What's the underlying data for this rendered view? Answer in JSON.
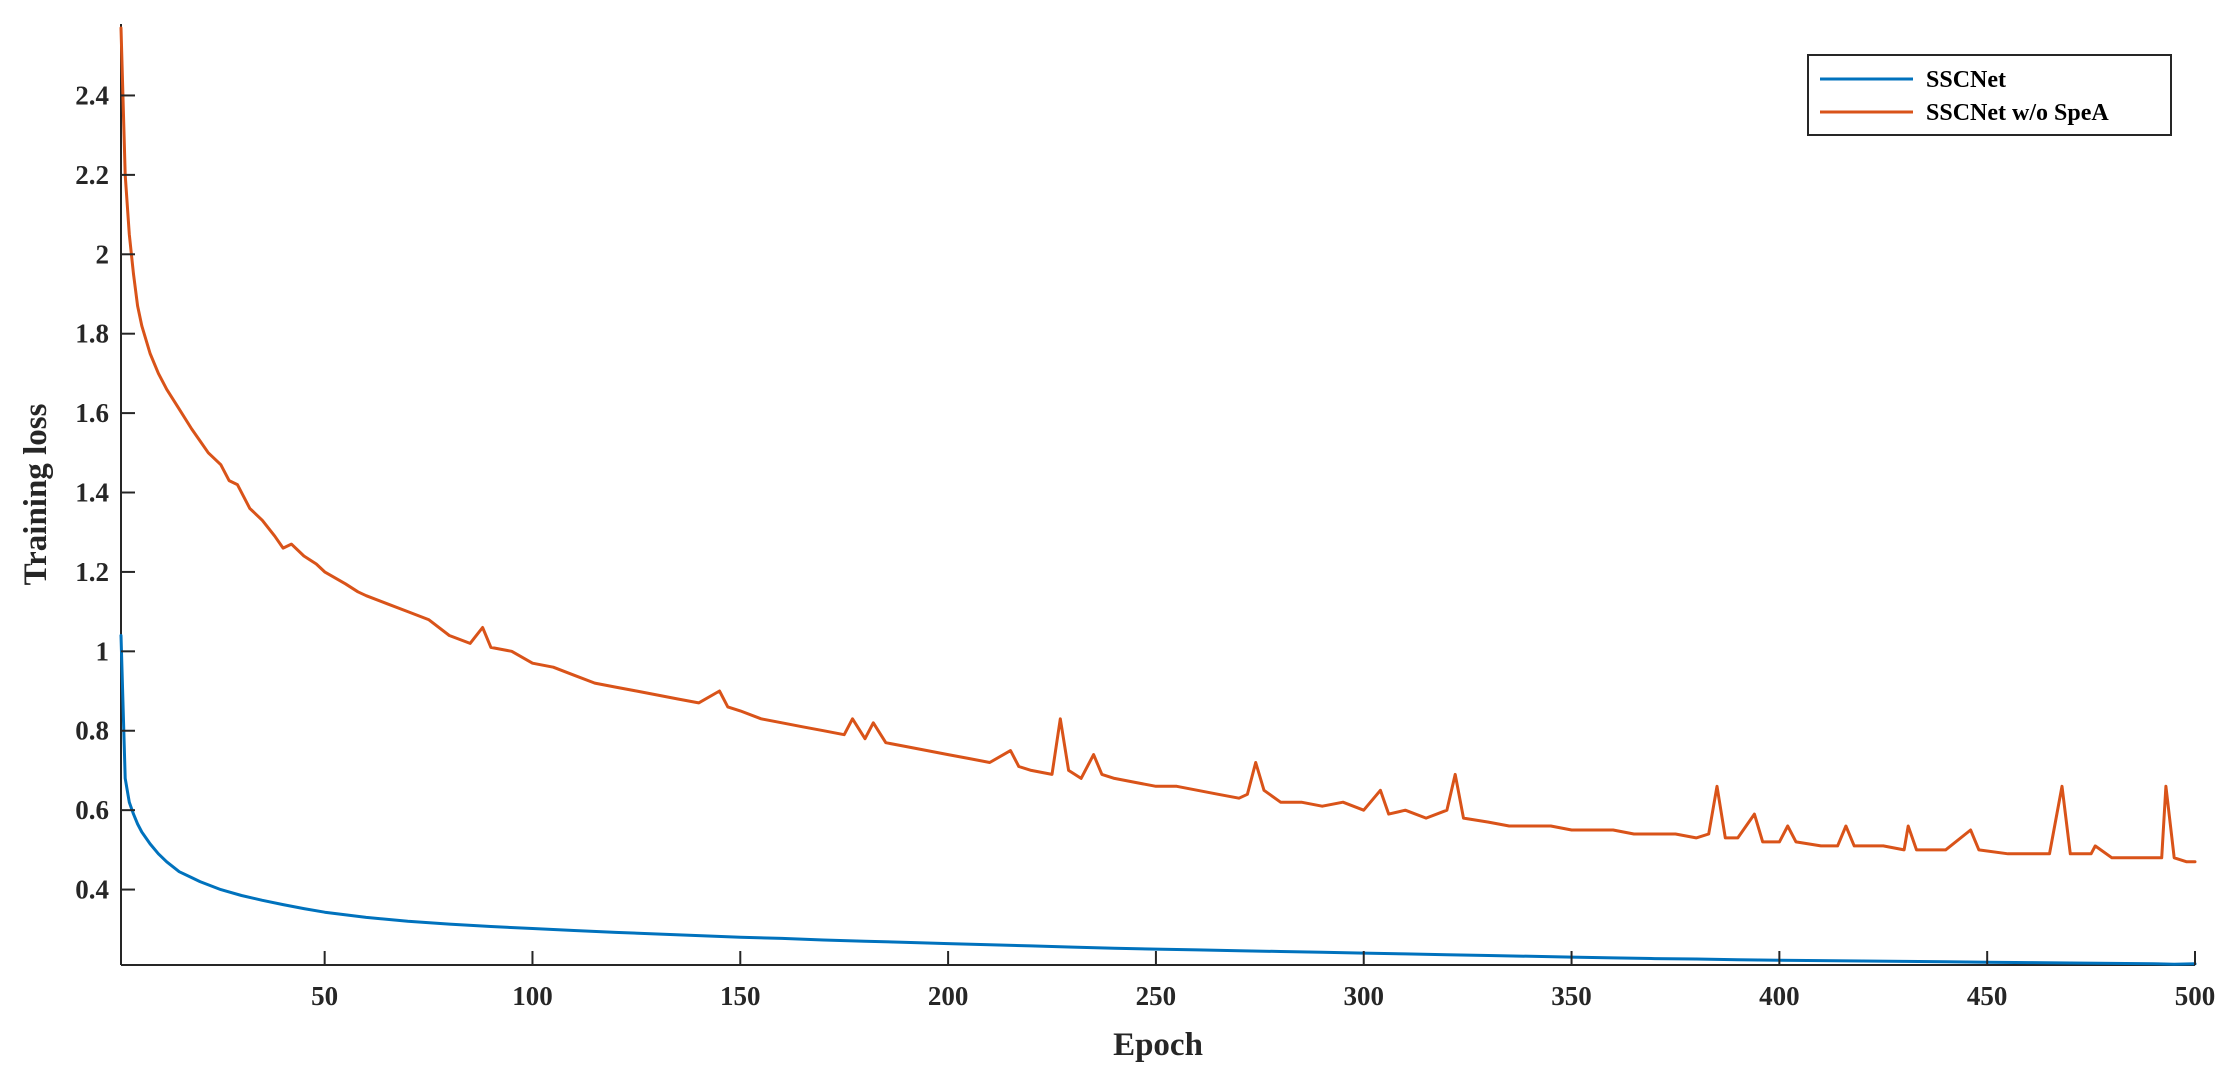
{
  "chart_data": {
    "type": "line",
    "title": "",
    "xlabel": "Epoch",
    "ylabel": "Training loss",
    "xlim": [
      1,
      500
    ],
    "ylim": [
      0.21,
      2.58
    ],
    "x_ticks": [
      50,
      100,
      150,
      200,
      250,
      300,
      350,
      400,
      450,
      500
    ],
    "y_ticks": [
      0.4,
      0.6,
      0.8,
      1,
      1.2,
      1.4,
      1.6,
      1.8,
      2,
      2.2,
      2.4
    ],
    "x_tick_labels": [
      "50",
      "100",
      "150",
      "200",
      "250",
      "300",
      "350",
      "400",
      "450",
      "500"
    ],
    "y_tick_labels": [
      "0.4",
      "0.6",
      "0.8",
      "1",
      "1.2",
      "1.4",
      "1.6",
      "1.8",
      "2",
      "2.2",
      "2.4"
    ],
    "grid": false,
    "legend_position": "top-right",
    "series": [
      {
        "name": "SSCNet",
        "color": "#0072BD",
        "points": [
          [
            1,
            1.04
          ],
          [
            2,
            0.68
          ],
          [
            3,
            0.62
          ],
          [
            4,
            0.59
          ],
          [
            5,
            0.565
          ],
          [
            6,
            0.545
          ],
          [
            8,
            0.515
          ],
          [
            10,
            0.49
          ],
          [
            12,
            0.47
          ],
          [
            15,
            0.445
          ],
          [
            18,
            0.43
          ],
          [
            20,
            0.42
          ],
          [
            25,
            0.4
          ],
          [
            30,
            0.385
          ],
          [
            35,
            0.373
          ],
          [
            40,
            0.362
          ],
          [
            45,
            0.352
          ],
          [
            50,
            0.343
          ],
          [
            60,
            0.33
          ],
          [
            70,
            0.32
          ],
          [
            80,
            0.313
          ],
          [
            90,
            0.307
          ],
          [
            100,
            0.302
          ],
          [
            110,
            0.297
          ],
          [
            120,
            0.292
          ],
          [
            130,
            0.288
          ],
          [
            140,
            0.284
          ],
          [
            150,
            0.28
          ],
          [
            160,
            0.277
          ],
          [
            170,
            0.273
          ],
          [
            180,
            0.27
          ],
          [
            190,
            0.267
          ],
          [
            200,
            0.264
          ],
          [
            210,
            0.261
          ],
          [
            220,
            0.258
          ],
          [
            230,
            0.255
          ],
          [
            240,
            0.252
          ],
          [
            250,
            0.25
          ],
          [
            260,
            0.248
          ],
          [
            270,
            0.246
          ],
          [
            280,
            0.244
          ],
          [
            290,
            0.242
          ],
          [
            300,
            0.24
          ],
          [
            310,
            0.238
          ],
          [
            320,
            0.236
          ],
          [
            330,
            0.234
          ],
          [
            340,
            0.232
          ],
          [
            350,
            0.23
          ],
          [
            360,
            0.228
          ],
          [
            370,
            0.226
          ],
          [
            380,
            0.225
          ],
          [
            390,
            0.223
          ],
          [
            400,
            0.222
          ],
          [
            410,
            0.221
          ],
          [
            420,
            0.22
          ],
          [
            430,
            0.219
          ],
          [
            440,
            0.218
          ],
          [
            450,
            0.217
          ],
          [
            460,
            0.216
          ],
          [
            470,
            0.215
          ],
          [
            480,
            0.214
          ],
          [
            490,
            0.213
          ],
          [
            495,
            0.212
          ],
          [
            500,
            0.213
          ]
        ]
      },
      {
        "name": "SSCNet w/o SpeA",
        "color": "#D95319",
        "points": [
          [
            1,
            2.57
          ],
          [
            2,
            2.2
          ],
          [
            3,
            2.05
          ],
          [
            4,
            1.95
          ],
          [
            5,
            1.87
          ],
          [
            6,
            1.82
          ],
          [
            8,
            1.75
          ],
          [
            10,
            1.7
          ],
          [
            12,
            1.66
          ],
          [
            15,
            1.61
          ],
          [
            18,
            1.56
          ],
          [
            20,
            1.53
          ],
          [
            22,
            1.5
          ],
          [
            25,
            1.47
          ],
          [
            27,
            1.43
          ],
          [
            29,
            1.42
          ],
          [
            32,
            1.36
          ],
          [
            35,
            1.33
          ],
          [
            38,
            1.29
          ],
          [
            40,
            1.26
          ],
          [
            42,
            1.27
          ],
          [
            45,
            1.24
          ],
          [
            48,
            1.22
          ],
          [
            50,
            1.2
          ],
          [
            55,
            1.17
          ],
          [
            58,
            1.15
          ],
          [
            60,
            1.14
          ],
          [
            65,
            1.12
          ],
          [
            70,
            1.1
          ],
          [
            75,
            1.08
          ],
          [
            80,
            1.04
          ],
          [
            85,
            1.02
          ],
          [
            88,
            1.06
          ],
          [
            90,
            1.01
          ],
          [
            95,
            1.0
          ],
          [
            100,
            0.97
          ],
          [
            105,
            0.96
          ],
          [
            110,
            0.94
          ],
          [
            115,
            0.92
          ],
          [
            120,
            0.91
          ],
          [
            125,
            0.9
          ],
          [
            130,
            0.89
          ],
          [
            135,
            0.88
          ],
          [
            140,
            0.87
          ],
          [
            145,
            0.9
          ],
          [
            147,
            0.86
          ],
          [
            150,
            0.85
          ],
          [
            155,
            0.83
          ],
          [
            160,
            0.82
          ],
          [
            165,
            0.81
          ],
          [
            170,
            0.8
          ],
          [
            175,
            0.79
          ],
          [
            177,
            0.83
          ],
          [
            180,
            0.78
          ],
          [
            182,
            0.82
          ],
          [
            185,
            0.77
          ],
          [
            190,
            0.76
          ],
          [
            195,
            0.75
          ],
          [
            200,
            0.74
          ],
          [
            205,
            0.73
          ],
          [
            210,
            0.72
          ],
          [
            215,
            0.75
          ],
          [
            217,
            0.71
          ],
          [
            220,
            0.7
          ],
          [
            225,
            0.69
          ],
          [
            227,
            0.83
          ],
          [
            229,
            0.7
          ],
          [
            232,
            0.68
          ],
          [
            235,
            0.74
          ],
          [
            237,
            0.69
          ],
          [
            240,
            0.68
          ],
          [
            245,
            0.67
          ],
          [
            250,
            0.66
          ],
          [
            255,
            0.66
          ],
          [
            260,
            0.65
          ],
          [
            265,
            0.64
          ],
          [
            270,
            0.63
          ],
          [
            272,
            0.64
          ],
          [
            274,
            0.72
          ],
          [
            276,
            0.65
          ],
          [
            280,
            0.62
          ],
          [
            285,
            0.62
          ],
          [
            290,
            0.61
          ],
          [
            295,
            0.62
          ],
          [
            300,
            0.6
          ],
          [
            304,
            0.65
          ],
          [
            306,
            0.59
          ],
          [
            310,
            0.6
          ],
          [
            315,
            0.58
          ],
          [
            320,
            0.6
          ],
          [
            322,
            0.69
          ],
          [
            324,
            0.58
          ],
          [
            330,
            0.57
          ],
          [
            335,
            0.56
          ],
          [
            340,
            0.56
          ],
          [
            345,
            0.56
          ],
          [
            350,
            0.55
          ],
          [
            355,
            0.55
          ],
          [
            360,
            0.55
          ],
          [
            365,
            0.54
          ],
          [
            370,
            0.54
          ],
          [
            375,
            0.54
          ],
          [
            380,
            0.53
          ],
          [
            383,
            0.54
          ],
          [
            385,
            0.66
          ],
          [
            387,
            0.53
          ],
          [
            390,
            0.53
          ],
          [
            394,
            0.59
          ],
          [
            396,
            0.52
          ],
          [
            400,
            0.52
          ],
          [
            402,
            0.56
          ],
          [
            404,
            0.52
          ],
          [
            410,
            0.51
          ],
          [
            414,
            0.51
          ],
          [
            416,
            0.56
          ],
          [
            418,
            0.51
          ],
          [
            425,
            0.51
          ],
          [
            430,
            0.5
          ],
          [
            431,
            0.56
          ],
          [
            433,
            0.5
          ],
          [
            440,
            0.5
          ],
          [
            446,
            0.55
          ],
          [
            448,
            0.5
          ],
          [
            455,
            0.49
          ],
          [
            460,
            0.49
          ],
          [
            465,
            0.49
          ],
          [
            468,
            0.66
          ],
          [
            470,
            0.49
          ],
          [
            475,
            0.49
          ],
          [
            476,
            0.51
          ],
          [
            480,
            0.48
          ],
          [
            485,
            0.48
          ],
          [
            490,
            0.48
          ],
          [
            492,
            0.48
          ],
          [
            493,
            0.66
          ],
          [
            495,
            0.48
          ],
          [
            498,
            0.47
          ],
          [
            500,
            0.47
          ]
        ]
      }
    ]
  }
}
